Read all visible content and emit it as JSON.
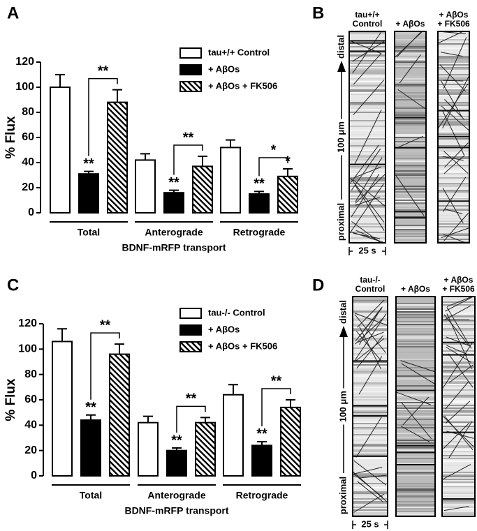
{
  "chart_data": [
    {
      "type": "bar",
      "panel": "A",
      "ylabel": "% Flux",
      "xlabel": "BDNF-mRFP transport",
      "categories": [
        "Total",
        "Anterograde",
        "Retrograde"
      ],
      "ylim": [
        0,
        120
      ],
      "yticks": [
        0,
        20,
        40,
        60,
        80,
        100,
        120
      ],
      "series": [
        {
          "name": "tau+/+ Control",
          "color": "#ffffff",
          "values": [
            100,
            42,
            52
          ],
          "errors": [
            10,
            5,
            6
          ],
          "labels": [
            null,
            null,
            null
          ]
        },
        {
          "name": "+ AβOs",
          "color": "#000000",
          "values": [
            31,
            16,
            15
          ],
          "errors": [
            2,
            2,
            2
          ],
          "labels": [
            "**",
            "**",
            "**"
          ]
        },
        {
          "name": "+ AβOs + FK506",
          "color": "#000000",
          "hatch": true,
          "values": [
            88,
            37,
            29
          ],
          "errors": [
            10,
            8,
            6
          ],
          "labels": [
            null,
            null,
            "*"
          ]
        }
      ],
      "bracket_labels": [
        "**",
        "**",
        "*"
      ]
    },
    {
      "type": "bar",
      "panel": "C",
      "ylabel": "% Flux",
      "xlabel": "BDNF-mRFP transport",
      "categories": [
        "Total",
        "Anterograde",
        "Retrograde"
      ],
      "ylim": [
        0,
        120
      ],
      "yticks": [
        0,
        20,
        40,
        60,
        80,
        100,
        120
      ],
      "series": [
        {
          "name": "tau-/- Control",
          "color": "#ffffff",
          "values": [
            106,
            42,
            64
          ],
          "errors": [
            10,
            5,
            8
          ],
          "labels": [
            null,
            null,
            null
          ]
        },
        {
          "name": "+ AβOs",
          "color": "#000000",
          "values": [
            44,
            20,
            24
          ],
          "errors": [
            4,
            2,
            3
          ],
          "labels": [
            "**",
            "**",
            "**"
          ]
        },
        {
          "name": "+ AβOs + FK506",
          "color": "#000000",
          "hatch": true,
          "values": [
            96,
            42,
            54
          ],
          "errors": [
            8,
            4,
            6
          ],
          "labels": [
            null,
            null,
            null
          ]
        }
      ],
      "bracket_labels": [
        "**",
        "**",
        "**"
      ]
    }
  ],
  "kymographs": [
    {
      "panel": "B",
      "columns": [
        [
          "tau+/+",
          "Control"
        ],
        [
          "+ AβOs"
        ],
        [
          "+ AβOs",
          "+ FK506"
        ]
      ],
      "top": "distal",
      "length": "100 μm",
      "bottom": "proximal",
      "time_scale": "25 s"
    },
    {
      "panel": "D",
      "columns": [
        [
          "tau-/-",
          "Control"
        ],
        [
          "+ AβOs"
        ],
        [
          "+ AβOs",
          "+ FK506"
        ]
      ],
      "top": "distal",
      "length": "100 μm",
      "bottom": "proximal",
      "time_scale": "25 s"
    }
  ]
}
